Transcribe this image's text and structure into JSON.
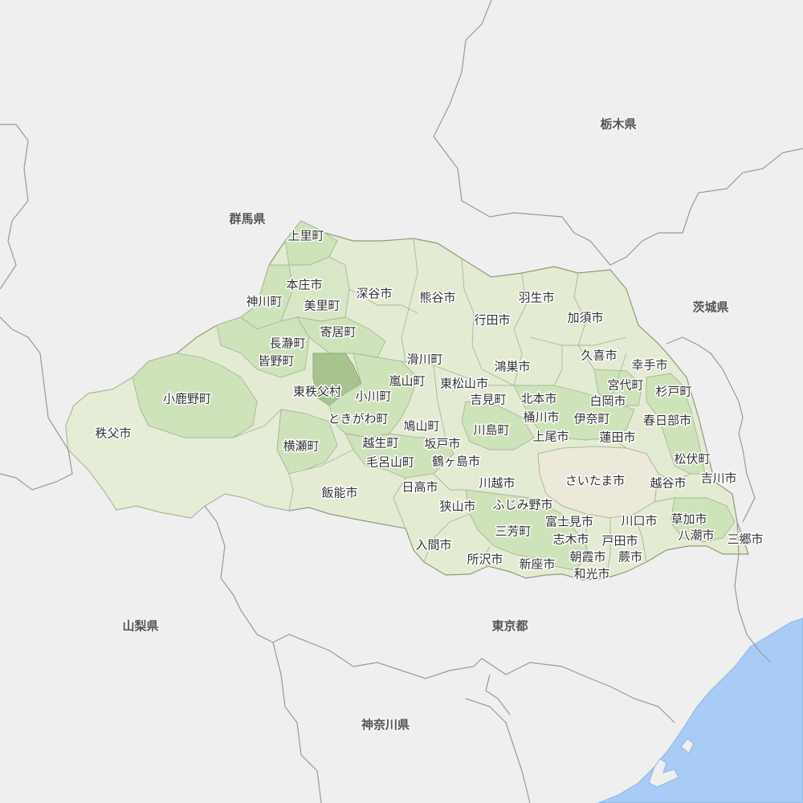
{
  "colors": {
    "background": "#efefef",
    "water": "#a9ccf7",
    "prefecture_base": "#e3ecd3",
    "chichibu": "#e5edd6",
    "medium_green": "#cfe3bb",
    "dark_green": "#b4d29f",
    "highlight_higashichichibu": "#a7c48e",
    "saitama_city": "#ede9da",
    "border": "#999999"
  },
  "prefectures": [
    {
      "name": "栃木県"
    },
    {
      "name": "群馬県"
    },
    {
      "name": "茨城県"
    },
    {
      "name": "山梨県"
    },
    {
      "name": "東京都"
    },
    {
      "name": "神奈川県"
    }
  ],
  "municipalities": [
    {
      "name": "上里町"
    },
    {
      "name": "本庄市"
    },
    {
      "name": "神川町"
    },
    {
      "name": "美里町"
    },
    {
      "name": "深谷市"
    },
    {
      "name": "熊谷市"
    },
    {
      "name": "羽生市"
    },
    {
      "name": "行田市"
    },
    {
      "name": "加須市"
    },
    {
      "name": "寄居町"
    },
    {
      "name": "長瀞町"
    },
    {
      "name": "皆野町"
    },
    {
      "name": "滑川町"
    },
    {
      "name": "鴻巣市"
    },
    {
      "name": "久喜市"
    },
    {
      "name": "幸手市"
    },
    {
      "name": "嵐山町"
    },
    {
      "name": "東松山市"
    },
    {
      "name": "宮代町"
    },
    {
      "name": "東秩父村"
    },
    {
      "name": "小川町"
    },
    {
      "name": "吉見町"
    },
    {
      "name": "北本市"
    },
    {
      "name": "白岡市"
    },
    {
      "name": "杉戸町"
    },
    {
      "name": "小鹿野町"
    },
    {
      "name": "ときがわ町"
    },
    {
      "name": "鳩山町"
    },
    {
      "name": "桶川市"
    },
    {
      "name": "伊奈町"
    },
    {
      "name": "春日部市"
    },
    {
      "name": "秩父市"
    },
    {
      "name": "川島町"
    },
    {
      "name": "上尾市"
    },
    {
      "name": "蓮田市"
    },
    {
      "name": "横瀬町"
    },
    {
      "name": "越生町"
    },
    {
      "name": "坂戸市"
    },
    {
      "name": "松伏町"
    },
    {
      "name": "毛呂山町"
    },
    {
      "name": "鶴ヶ島市"
    },
    {
      "name": "さいたま市"
    },
    {
      "name": "越谷市"
    },
    {
      "name": "吉川市"
    },
    {
      "name": "日高市"
    },
    {
      "name": "川越市"
    },
    {
      "name": "飯能市"
    },
    {
      "name": "狭山市"
    },
    {
      "name": "ふじみ野市"
    },
    {
      "name": "川口市"
    },
    {
      "name": "草加市"
    },
    {
      "name": "富士見市"
    },
    {
      "name": "三芳町"
    },
    {
      "name": "八潮市"
    },
    {
      "name": "三郷市"
    },
    {
      "name": "志木市"
    },
    {
      "name": "戸田市"
    },
    {
      "name": "入間市"
    },
    {
      "name": "朝霞市"
    },
    {
      "name": "蕨市"
    },
    {
      "name": "所沢市"
    },
    {
      "name": "新座市"
    },
    {
      "name": "和光市"
    }
  ]
}
